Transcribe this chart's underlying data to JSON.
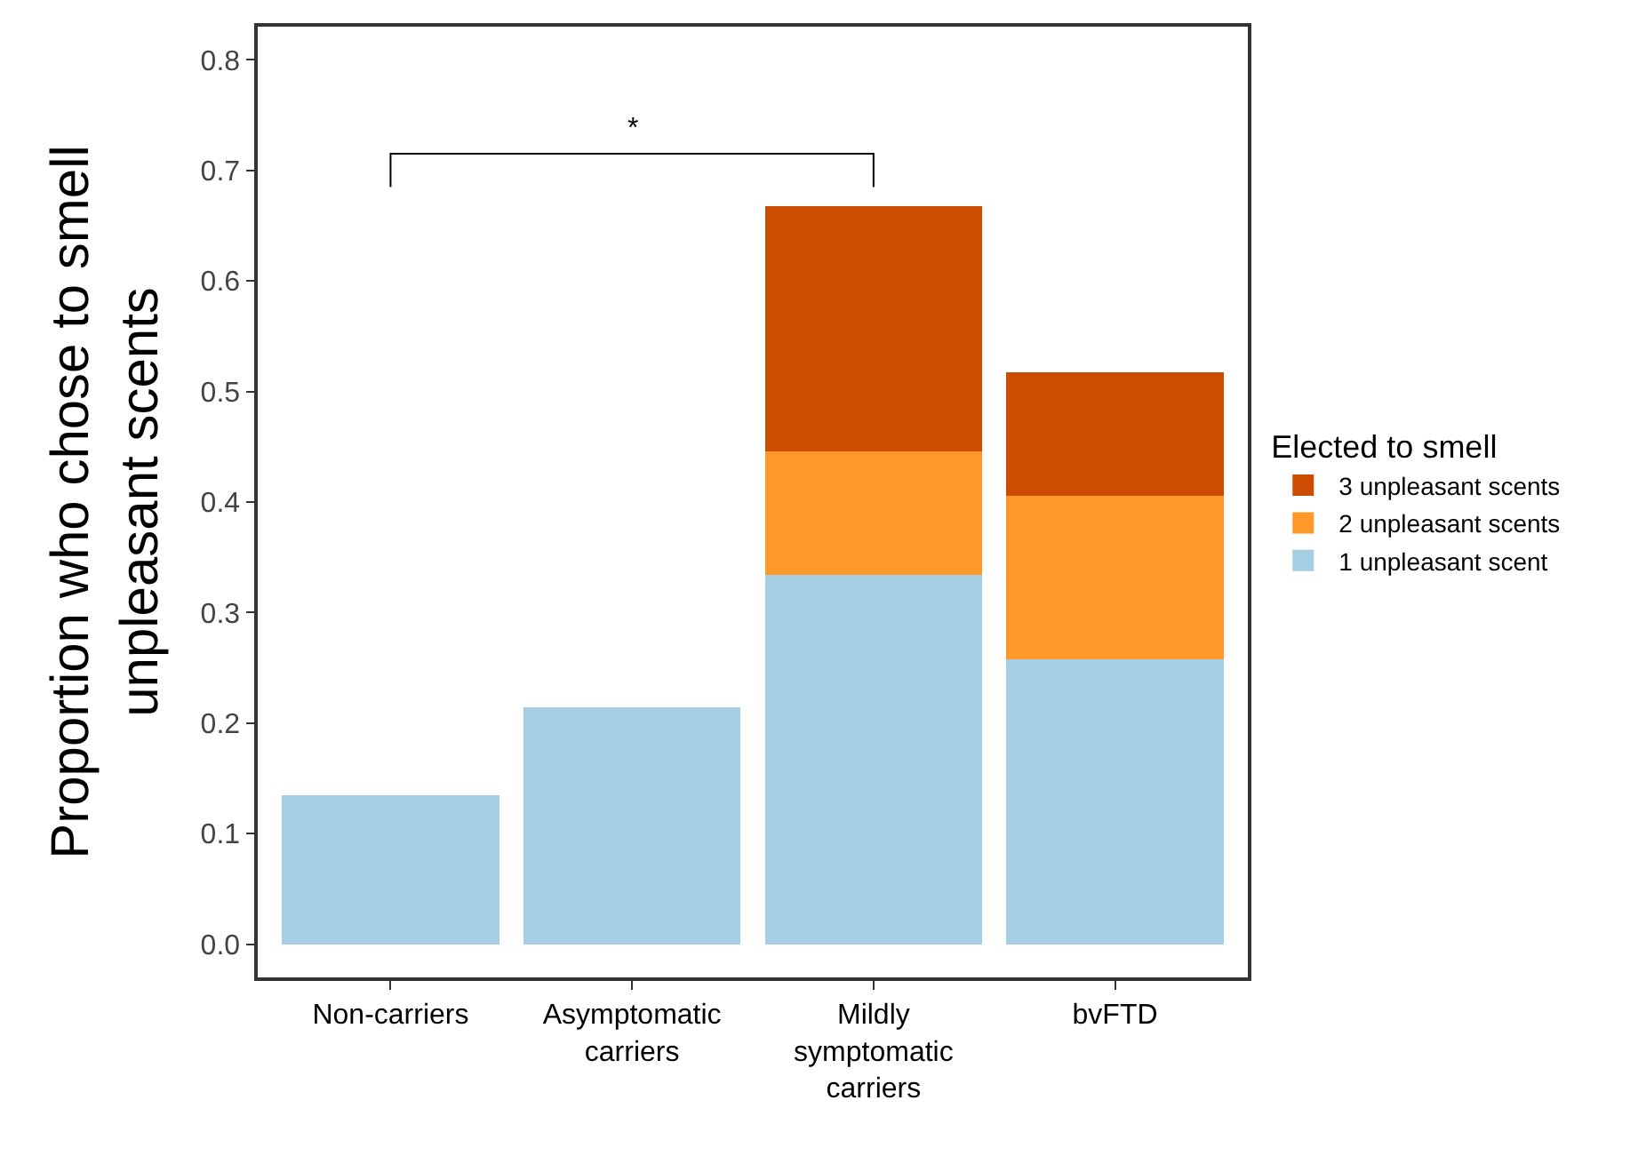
{
  "chart_data": {
    "type": "bar",
    "stacked": true,
    "ylabel": "Proportion who chose to smell\nunpleasant scents",
    "legend_title": "Elected to smell",
    "legend": "right",
    "grid": false,
    "categories": [
      "Non-carriers",
      "Asymptomatic\ncarriers",
      "Mildly\nsymptomatic\ncarriers",
      "bvFTD"
    ],
    "series": [
      {
        "name": "1 unpleasant scent",
        "color": "#a6cee3",
        "values": [
          0.135,
          0.214,
          0.334,
          0.258
        ]
      },
      {
        "name": "2 unpleasant scents",
        "color": "#fe9929",
        "values": [
          null,
          null,
          0.112,
          0.148
        ]
      },
      {
        "name": "3 unpleasant scents",
        "color": "#cc4c02",
        "values": [
          null,
          null,
          0.222,
          0.111
        ]
      }
    ],
    "ylim": [
      -0.03,
      0.83
    ],
    "yticks": [
      {
        "value": 0,
        "label": "0.0"
      },
      {
        "value": 0.1,
        "label": "0.1"
      },
      {
        "value": 0.2,
        "label": "0.2"
      },
      {
        "value": 0.3,
        "label": "0.3"
      },
      {
        "value": 0.4,
        "label": "0.4"
      },
      {
        "value": 0.5,
        "label": "0.5"
      },
      {
        "value": 0.6,
        "label": "0.6"
      },
      {
        "value": 0.7,
        "label": "0.7"
      },
      {
        "value": 0.8,
        "label": "0.8"
      }
    ],
    "annotations": [
      "*"
    ]
  }
}
